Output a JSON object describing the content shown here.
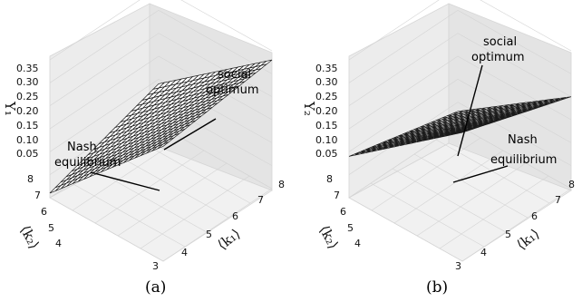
{
  "chart_data": [
    {
      "type": "surface3d",
      "panel_label": "(a)",
      "zlabel": "Y₁",
      "xlabel": "⟨k₁⟩",
      "ylabel": "⟨k₂⟩",
      "xlim": [
        3,
        8
      ],
      "ylim": [
        3,
        8
      ],
      "zlim": [
        0.05,
        0.35
      ],
      "x_ticks": [
        "4",
        "5",
        "6",
        "7",
        "8"
      ],
      "y_ticks": [
        "3",
        "4",
        "5",
        "6",
        "7",
        "8"
      ],
      "z_ticks": [
        "0.05",
        "0.10",
        "0.15",
        "0.20",
        "0.25",
        "0.30",
        "0.35"
      ],
      "surface_corners": {
        "k1_3_k2_3": 0.3,
        "k1_8_k2_3": 0.33,
        "k1_3_k2_8": 0.06,
        "k1_8_k2_8": 0.14
      },
      "annotations": [
        {
          "text": [
            "social",
            "optimum"
          ]
        },
        {
          "text": [
            "Nash",
            "equilibrium"
          ]
        }
      ]
    },
    {
      "type": "surface3d",
      "panel_label": "(b)",
      "zlabel": "Y₂",
      "xlabel": "⟨k₁⟩",
      "ylabel": "⟨k₂⟩",
      "xlim": [
        3,
        8
      ],
      "ylim": [
        3,
        8
      ],
      "zlim": [
        0.05,
        0.35
      ],
      "x_ticks": [
        "3",
        "4",
        "5",
        "6",
        "7",
        "8"
      ],
      "y_ticks": [
        "4",
        "5",
        "6",
        "7",
        "8"
      ],
      "z_ticks": [
        "0.05",
        "0.10",
        "0.15",
        "0.20",
        "0.25",
        "0.30",
        "0.35"
      ],
      "surface_corners": {
        "k1_3_k2_3": 0.33,
        "k1_8_k2_3": 0.25,
        "k1_3_k2_8": 0.14,
        "k1_8_k2_8": 0.08
      },
      "annotations": [
        {
          "text": [
            "social",
            "optimum"
          ]
        },
        {
          "text": [
            "Nash",
            "equilibrium"
          ]
        }
      ]
    }
  ]
}
